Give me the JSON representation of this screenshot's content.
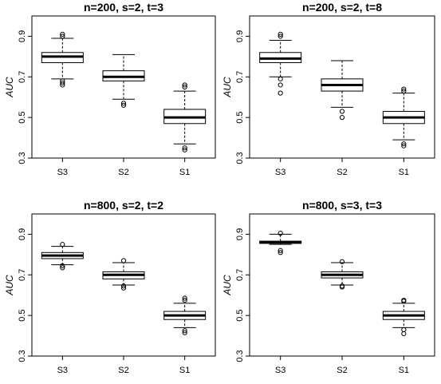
{
  "chart_data": [
    {
      "type": "box",
      "title": "n=200, s=2, t=3",
      "ylabel": "AUC",
      "ylim": [
        0.3,
        1.0
      ],
      "yticks": [
        0.3,
        0.5,
        0.7,
        0.9
      ],
      "categories": [
        "S3",
        "S2",
        "S1"
      ],
      "boxes": [
        {
          "name": "S3",
          "whisker_low": 0.69,
          "q1": 0.77,
          "median": 0.8,
          "q3": 0.82,
          "whisker_high": 0.89,
          "outliers": [
            0.66,
            0.67,
            0.68,
            0.9,
            0.91
          ]
        },
        {
          "name": "S2",
          "whisker_low": 0.59,
          "q1": 0.68,
          "median": 0.7,
          "q3": 0.73,
          "whisker_high": 0.81,
          "outliers": [
            0.56,
            0.57
          ]
        },
        {
          "name": "S1",
          "whisker_low": 0.37,
          "q1": 0.47,
          "median": 0.5,
          "q3": 0.54,
          "whisker_high": 0.63,
          "outliers": [
            0.34,
            0.35,
            0.65,
            0.66
          ]
        }
      ]
    },
    {
      "type": "box",
      "title": "n=200, s=2, t=8",
      "ylabel": "AUC",
      "ylim": [
        0.3,
        1.0
      ],
      "yticks": [
        0.3,
        0.5,
        0.7,
        0.9
      ],
      "categories": [
        "S3",
        "S2",
        "S1"
      ],
      "boxes": [
        {
          "name": "S3",
          "whisker_low": 0.7,
          "q1": 0.77,
          "median": 0.79,
          "q3": 0.82,
          "whisker_high": 0.88,
          "outliers": [
            0.62,
            0.66,
            0.69,
            0.9,
            0.91
          ]
        },
        {
          "name": "S2",
          "whisker_low": 0.55,
          "q1": 0.63,
          "median": 0.66,
          "q3": 0.69,
          "whisker_high": 0.78,
          "outliers": [
            0.5,
            0.53
          ]
        },
        {
          "name": "S1",
          "whisker_low": 0.39,
          "q1": 0.47,
          "median": 0.5,
          "q3": 0.53,
          "whisker_high": 0.62,
          "outliers": [
            0.36,
            0.37,
            0.63,
            0.64
          ]
        }
      ]
    },
    {
      "type": "box",
      "title": "n=800, s=2, t=2",
      "ylabel": "AUC",
      "ylim": [
        0.3,
        1.0
      ],
      "yticks": [
        0.3,
        0.5,
        0.7,
        0.9
      ],
      "categories": [
        "S3",
        "S2",
        "S1"
      ],
      "boxes": [
        {
          "name": "S3",
          "whisker_low": 0.75,
          "q1": 0.78,
          "median": 0.795,
          "q3": 0.81,
          "whisker_high": 0.84,
          "outliers": [
            0.735,
            0.745,
            0.85
          ]
        },
        {
          "name": "S2",
          "whisker_low": 0.65,
          "q1": 0.68,
          "median": 0.7,
          "q3": 0.715,
          "whisker_high": 0.76,
          "outliers": [
            0.635,
            0.645,
            0.77
          ]
        },
        {
          "name": "S1",
          "whisker_low": 0.44,
          "q1": 0.48,
          "median": 0.5,
          "q3": 0.52,
          "whisker_high": 0.56,
          "outliers": [
            0.415,
            0.425,
            0.575,
            0.585
          ]
        }
      ]
    },
    {
      "type": "box",
      "title": "n=800, s=3, t=3",
      "ylabel": "AUC",
      "ylim": [
        0.3,
        1.0
      ],
      "yticks": [
        0.3,
        0.5,
        0.7,
        0.9
      ],
      "categories": [
        "S3",
        "S2",
        "S1"
      ],
      "boxes": [
        {
          "name": "S3",
          "whisker_low": 0.85,
          "q1": 0.855,
          "median": 0.86,
          "q3": 0.866,
          "whisker_high": 0.9,
          "outliers": [
            0.81,
            0.82,
            0.905
          ]
        },
        {
          "name": "S2",
          "whisker_low": 0.65,
          "q1": 0.685,
          "median": 0.7,
          "q3": 0.715,
          "whisker_high": 0.76,
          "outliers": [
            0.64,
            0.645,
            0.765
          ]
        },
        {
          "name": "S1",
          "whisker_low": 0.44,
          "q1": 0.48,
          "median": 0.5,
          "q3": 0.52,
          "whisker_high": 0.56,
          "outliers": [
            0.41,
            0.43,
            0.57,
            0.575
          ]
        }
      ]
    }
  ]
}
